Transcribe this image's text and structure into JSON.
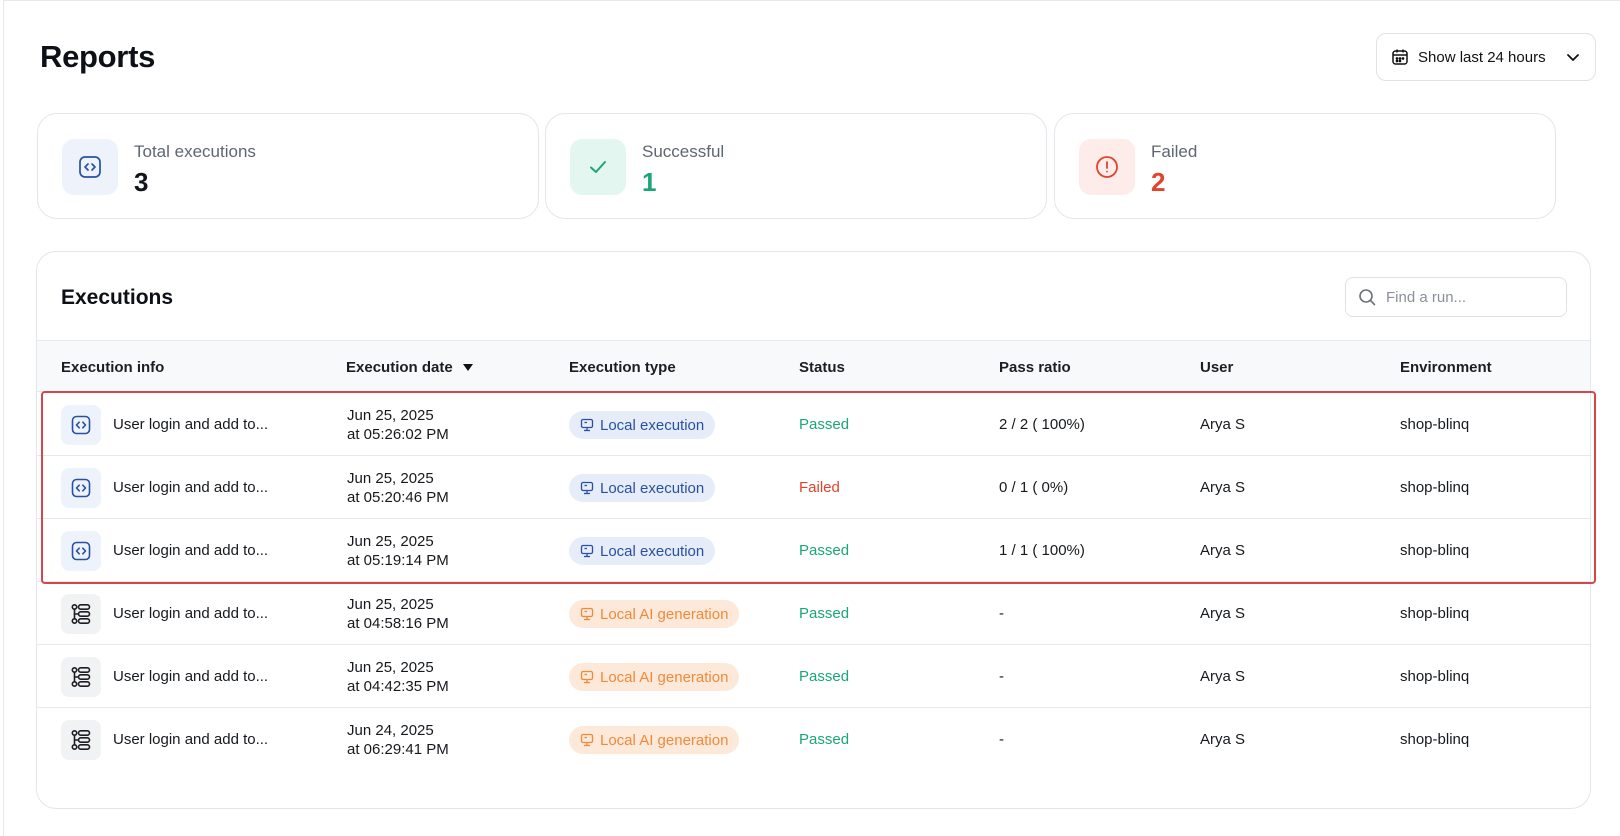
{
  "page": {
    "title": "Reports"
  },
  "range": {
    "label": "Show last 24 hours"
  },
  "stats": [
    {
      "label": "Total executions",
      "value": "3",
      "color": "#111418",
      "icon": "code-icon",
      "icon_bg": "#eef2fa"
    },
    {
      "label": "Successful",
      "value": "1",
      "color": "#1aa775",
      "icon": "check-icon",
      "icon_bg": "#e3f6ef"
    },
    {
      "label": "Failed",
      "value": "2",
      "color": "#e2432c",
      "icon": "alert-icon",
      "icon_bg": "#fdecea"
    }
  ],
  "executions": {
    "title": "Executions",
    "search_placeholder": "Find a run...",
    "columns": {
      "info": "Execution info",
      "date": "Execution date",
      "type": "Execution type",
      "status": "Status",
      "ratio": "Pass ratio",
      "user": "User",
      "env": "Environment"
    },
    "rows": [
      {
        "icon": "code-icon",
        "name": "User login and add to...",
        "date_line1": "Jun 25, 2025",
        "date_line2": "at 05:26:02 PM",
        "type": "Local execution",
        "type_style": "blue",
        "status": "Passed",
        "status_style": "pass",
        "ratio": "2 / 2 ( 100%)",
        "user": "Arya S",
        "env": "shop-blinq"
      },
      {
        "icon": "code-icon",
        "name": "User login and add to...",
        "date_line1": "Jun 25, 2025",
        "date_line2": "at 05:20:46 PM",
        "type": "Local execution",
        "type_style": "blue",
        "status": "Failed",
        "status_style": "fail",
        "ratio": "0 / 1 ( 0%)",
        "user": "Arya S",
        "env": "shop-blinq"
      },
      {
        "icon": "code-icon",
        "name": "User login and add to...",
        "date_line1": "Jun 25, 2025",
        "date_line2": "at 05:19:14 PM",
        "type": "Local execution",
        "type_style": "blue",
        "status": "Passed",
        "status_style": "pass",
        "ratio": "1 / 1 ( 100%)",
        "user": "Arya S",
        "env": "shop-blinq"
      },
      {
        "icon": "steps-icon",
        "name": "User login and add to...",
        "date_line1": "Jun 25, 2025",
        "date_line2": "at 04:58:16 PM",
        "type": "Local AI generation",
        "type_style": "orange",
        "status": "Passed",
        "status_style": "pass",
        "ratio": "-",
        "user": "Arya S",
        "env": "shop-blinq"
      },
      {
        "icon": "steps-icon",
        "name": "User login and add to...",
        "date_line1": "Jun 25, 2025",
        "date_line2": "at 04:42:35 PM",
        "type": "Local AI generation",
        "type_style": "orange",
        "status": "Passed",
        "status_style": "pass",
        "ratio": "-",
        "user": "Arya S",
        "env": "shop-blinq"
      },
      {
        "icon": "steps-icon",
        "name": "User login and add to...",
        "date_line1": "Jun 24, 2025",
        "date_line2": "at 06:29:41 PM",
        "type": "Local AI generation",
        "type_style": "orange",
        "status": "Passed",
        "status_style": "pass",
        "ratio": "-",
        "user": "Arya S",
        "env": "shop-blinq"
      }
    ]
  }
}
